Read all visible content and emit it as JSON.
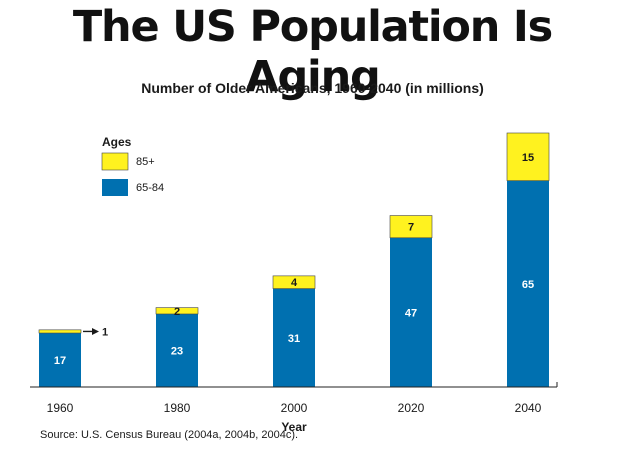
{
  "headline": "The US Population Is Aging",
  "source": "Source: U.S. Census Bureau (2004a, 2004b, 2004c).",
  "colors": {
    "group_65_84": "#0070b0",
    "group_85_plus": "#fff21f",
    "axis": "#222222"
  },
  "chart_data": {
    "type": "bar",
    "stacked": true,
    "title": "Number of Older Americans, 1960-2040 (in millions)",
    "xlabel": "Year",
    "ylabel": "",
    "categories": [
      "1960",
      "1980",
      "2000",
      "2020",
      "2040"
    ],
    "series": [
      {
        "name": "65-84",
        "values": [
          17,
          23,
          31,
          47,
          65
        ]
      },
      {
        "name": "85+",
        "values": [
          1,
          2,
          4,
          7,
          15
        ]
      }
    ],
    "legend": {
      "title": "Ages",
      "placement": "top-left",
      "entries": [
        "85+",
        "65-84"
      ]
    },
    "ylim": [
      0,
      80
    ],
    "grid": false
  }
}
